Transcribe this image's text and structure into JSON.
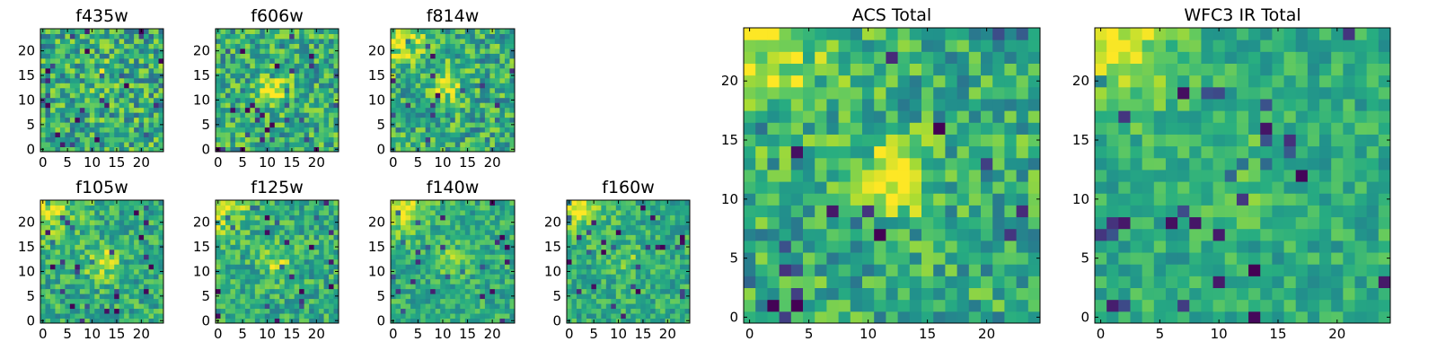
{
  "colormap": "viridis",
  "chart_data": [
    {
      "type": "heatmap",
      "title": "f435w",
      "xlim": [
        0,
        24
      ],
      "ylim": [
        0,
        24
      ],
      "xticks": [
        0,
        5,
        10,
        15,
        20
      ],
      "yticks": [
        0,
        5,
        10,
        15,
        20
      ],
      "peak": {
        "x": 12,
        "y": 15,
        "level": 0.12
      },
      "brightest_corner": "none",
      "noise": 0.55
    },
    {
      "type": "heatmap",
      "title": "f606w",
      "xlim": [
        0,
        24
      ],
      "ylim": [
        0,
        24
      ],
      "xticks": [
        0,
        5,
        10,
        15,
        20
      ],
      "yticks": [
        0,
        5,
        10,
        15,
        20
      ],
      "peak": {
        "x": 11.5,
        "y": 12,
        "level": 0.45
      },
      "brightest_corner": "none",
      "noise": 0.5
    },
    {
      "type": "heatmap",
      "title": "f814w",
      "xlim": [
        0,
        24
      ],
      "ylim": [
        0,
        24
      ],
      "xticks": [
        0,
        5,
        10,
        15,
        20
      ],
      "yticks": [
        0,
        5,
        10,
        15,
        20
      ],
      "peak": {
        "x": 11,
        "y": 13,
        "level": 0.3
      },
      "brightest_corner": "top-left",
      "noise": 0.5
    },
    {
      "type": "heatmap",
      "title": "f105w",
      "xlim": [
        0,
        24
      ],
      "ylim": [
        0,
        24
      ],
      "xticks": [
        0,
        5,
        10,
        15,
        20
      ],
      "yticks": [
        0,
        5,
        10,
        15,
        20
      ],
      "peak": {
        "x": 12,
        "y": 12,
        "level": 0.35
      },
      "brightest_corner": "top-left",
      "noise": 0.4
    },
    {
      "type": "heatmap",
      "title": "f125w",
      "xlim": [
        0,
        24
      ],
      "ylim": [
        0,
        24
      ],
      "xticks": [
        0,
        5,
        10,
        15,
        20
      ],
      "yticks": [
        0,
        5,
        10,
        15,
        20
      ],
      "peak": {
        "x": 12,
        "y": 12,
        "level": 0.25
      },
      "brightest_corner": "top-left",
      "noise": 0.4
    },
    {
      "type": "heatmap",
      "title": "f140w",
      "xlim": [
        0,
        24
      ],
      "ylim": [
        0,
        24
      ],
      "xticks": [
        0,
        5,
        10,
        15,
        20
      ],
      "yticks": [
        0,
        5,
        10,
        15,
        20
      ],
      "peak": {
        "x": 12,
        "y": 12,
        "level": 0.2
      },
      "brightest_corner": "top-left",
      "noise": 0.35
    },
    {
      "type": "heatmap",
      "title": "f160w",
      "xlim": [
        0,
        24
      ],
      "ylim": [
        0,
        24
      ],
      "xticks": [
        0,
        5,
        10,
        15,
        20
      ],
      "yticks": [
        0,
        5,
        10,
        15,
        20
      ],
      "peak": {
        "x": 12,
        "y": 12,
        "level": 0.15
      },
      "brightest_corner": "top-left",
      "noise": 0.35
    },
    {
      "type": "heatmap",
      "title": "ACS Total",
      "xlim": [
        0,
        24
      ],
      "ylim": [
        0,
        24
      ],
      "xticks": [
        0,
        5,
        10,
        15,
        20
      ],
      "yticks": [
        0,
        5,
        10,
        15,
        20
      ],
      "peak": {
        "x": 12,
        "y": 12,
        "level": 0.45
      },
      "brightest_corner": "top-left",
      "noise": 0.45
    },
    {
      "type": "heatmap",
      "title": "WFC3 IR Total",
      "xlim": [
        0,
        24
      ],
      "ylim": [
        0,
        24
      ],
      "xticks": [
        0,
        5,
        10,
        15,
        20
      ],
      "yticks": [
        0,
        5,
        10,
        15,
        20
      ],
      "peak": {
        "x": 12,
        "y": 12,
        "level": 0.15
      },
      "brightest_corner": "top-left",
      "noise": 0.3
    }
  ]
}
